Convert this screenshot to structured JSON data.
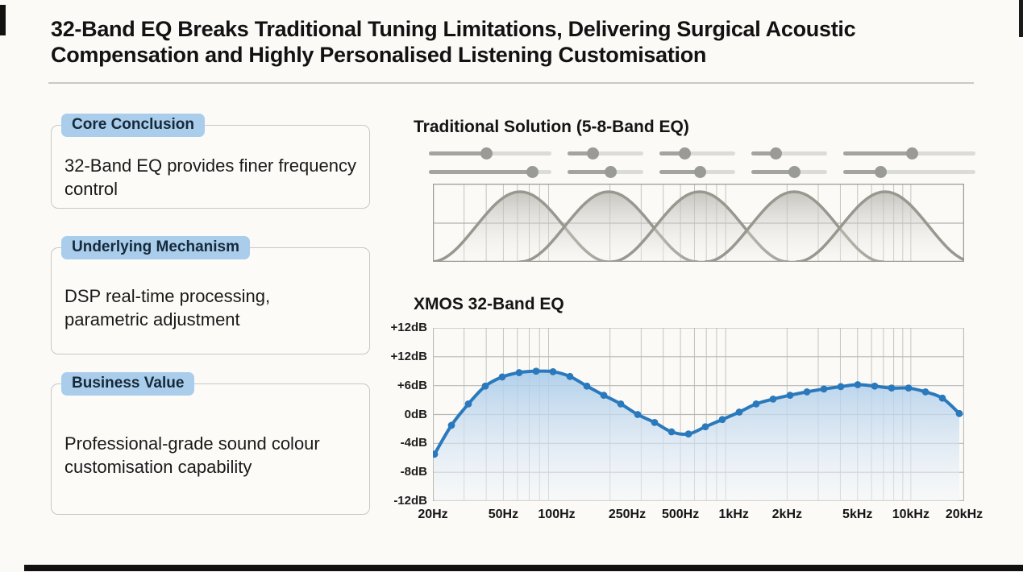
{
  "title": "32-Band EQ Breaks Traditional Tuning Limitations, Delivering Surgical Acoustic Compensation and Highly Personalised Listening Customisation",
  "cards": [
    {
      "badge": "Core Conclusion",
      "text": "32-Band EQ provides finer frequency control"
    },
    {
      "badge": "Underlying Mechanism",
      "text": "DSP real-time processing, parametric adjustment"
    },
    {
      "badge": "Business Value",
      "text": "Professional-grade sound colour customisation capability"
    }
  ],
  "traditional": {
    "heading": "Traditional Solution (5-8-Band EQ)",
    "slider_values_pct": {
      "row1": [
        47,
        33,
        33,
        32,
        52
      ],
      "row2": [
        84,
        56,
        53,
        56,
        28
      ]
    },
    "bells": {
      "count": 5,
      "peak_positions": [
        0.164,
        0.331,
        0.502,
        0.68,
        0.851
      ],
      "half_width": 0.167
    }
  },
  "chart_data": {
    "type": "line",
    "title": "XMOS 32-Band EQ",
    "x_scale": "log",
    "bands": 32,
    "freq_range_hz": [
      20,
      20000
    ],
    "x_tick_freqs": [
      20,
      50,
      100,
      250,
      500,
      1000,
      2000,
      5000,
      10000,
      20000
    ],
    "x_tick_labels": [
      "20Hz",
      "50Hz",
      "100Hz",
      "250Hz",
      "500Hz",
      "1kHz",
      "2kHz",
      "5kHz",
      "10kHz",
      "20kHz"
    ],
    "y_tick_labels": [
      "+12dB",
      "+12dB",
      "+6dB",
      "0dB",
      "-4dB",
      "-8dB",
      "-12dB"
    ],
    "grid": true,
    "legend": false,
    "values_db": [
      -5.5,
      -1.5,
      2.2,
      5.9,
      7.8,
      8.7,
      9.0,
      8.9,
      7.9,
      5.9,
      4.0,
      2.2,
      0.0,
      -1.1,
      -2.4,
      -2.7,
      -1.7,
      -0.7,
      0.5,
      2.2,
      3.2,
      4.0,
      4.7,
      5.3,
      5.8,
      6.2,
      5.9,
      5.5,
      5.5,
      4.7,
      3.4,
      0.2
    ]
  },
  "colors": {
    "badge_blue": "#a9cdea",
    "badge_text": "#16293a",
    "curve_blue": "#2a79bd",
    "curve_fill_top": "#a9cbe9",
    "curve_fill_bottom": "#f3f7fb",
    "bell_gray": "#98988f",
    "grid_gray": "#c3c3bf",
    "slider_gray": "#a3a3a0"
  }
}
